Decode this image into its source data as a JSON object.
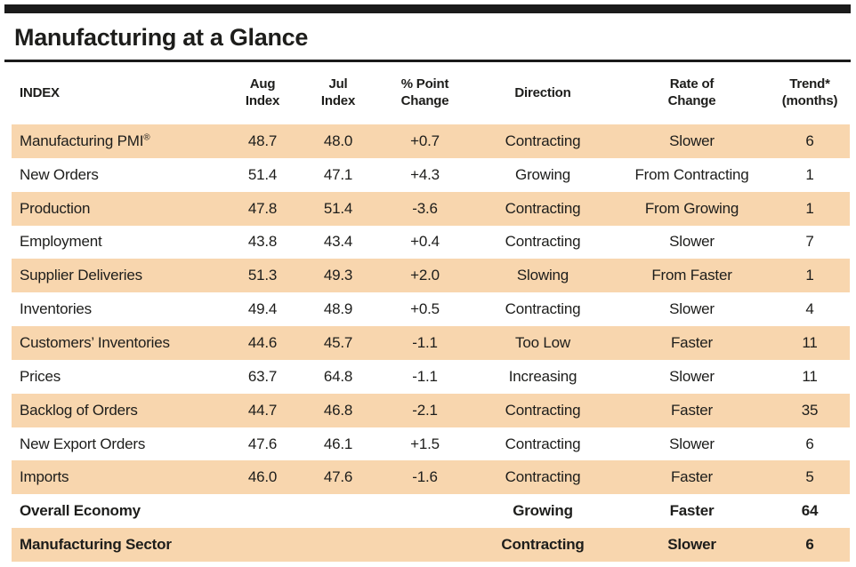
{
  "title": "Manufacturing at a Glance",
  "colors": {
    "row_shade": "#F8D6AE",
    "rule_bar": "#1B1B1B",
    "text": "#1D1D1B"
  },
  "table": {
    "headers": [
      "INDEX",
      "Aug\nIndex",
      "Jul\nIndex",
      "% Point\nChange",
      "Direction",
      "Rate of\nChange",
      "Trend*\n(months)"
    ],
    "rows": [
      {
        "index": "Manufacturing PMI",
        "index_sup": "®",
        "aug": "48.7",
        "jul": "48.0",
        "change": "+0.7",
        "direction": "Contracting",
        "rate": "Slower",
        "trend": "6",
        "shaded": true,
        "bold": false
      },
      {
        "index": "New Orders",
        "aug": "51.4",
        "jul": "47.1",
        "change": "+4.3",
        "direction": "Growing",
        "rate": "From Contracting",
        "trend": "1",
        "shaded": false,
        "bold": false
      },
      {
        "index": "Production",
        "aug": "47.8",
        "jul": "51.4",
        "change": "-3.6",
        "direction": "Contracting",
        "rate": "From Growing",
        "trend": "1",
        "shaded": true,
        "bold": false
      },
      {
        "index": "Employment",
        "aug": "43.8",
        "jul": "43.4",
        "change": "+0.4",
        "direction": "Contracting",
        "rate": "Slower",
        "trend": "7",
        "shaded": false,
        "bold": false
      },
      {
        "index": "Supplier Deliveries",
        "aug": "51.3",
        "jul": "49.3",
        "change": "+2.0",
        "direction": "Slowing",
        "rate": "From Faster",
        "trend": "1",
        "shaded": true,
        "bold": false
      },
      {
        "index": "Inventories",
        "aug": "49.4",
        "jul": "48.9",
        "change": "+0.5",
        "direction": "Contracting",
        "rate": "Slower",
        "trend": "4",
        "shaded": false,
        "bold": false
      },
      {
        "index": "Customers’ Inventories",
        "aug": "44.6",
        "jul": "45.7",
        "change": "-1.1",
        "direction": "Too Low",
        "rate": "Faster",
        "trend": "11",
        "shaded": true,
        "bold": false
      },
      {
        "index": "Prices",
        "aug": "63.7",
        "jul": "64.8",
        "change": "-1.1",
        "direction": "Increasing",
        "rate": "Slower",
        "trend": "11",
        "shaded": false,
        "bold": false
      },
      {
        "index": "Backlog of Orders",
        "aug": "44.7",
        "jul": "46.8",
        "change": "-2.1",
        "direction": "Contracting",
        "rate": "Faster",
        "trend": "35",
        "shaded": true,
        "bold": false
      },
      {
        "index": "New Export Orders",
        "aug": "47.6",
        "jul": "46.1",
        "change": "+1.5",
        "direction": "Contracting",
        "rate": "Slower",
        "trend": "6",
        "shaded": false,
        "bold": false
      },
      {
        "index": "Imports",
        "aug": "46.0",
        "jul": "47.6",
        "change": "-1.6",
        "direction": "Contracting",
        "rate": "Faster",
        "trend": "5",
        "shaded": true,
        "bold": false
      },
      {
        "index": "Overall Economy",
        "aug": "",
        "jul": "",
        "change": "",
        "direction": "Growing",
        "rate": "Faster",
        "trend": "64",
        "shaded": false,
        "bold": true
      },
      {
        "index": "Manufacturing Sector",
        "aug": "",
        "jul": "",
        "change": "",
        "direction": "Contracting",
        "rate": "Slower",
        "trend": "6",
        "shaded": true,
        "bold": true
      }
    ]
  }
}
